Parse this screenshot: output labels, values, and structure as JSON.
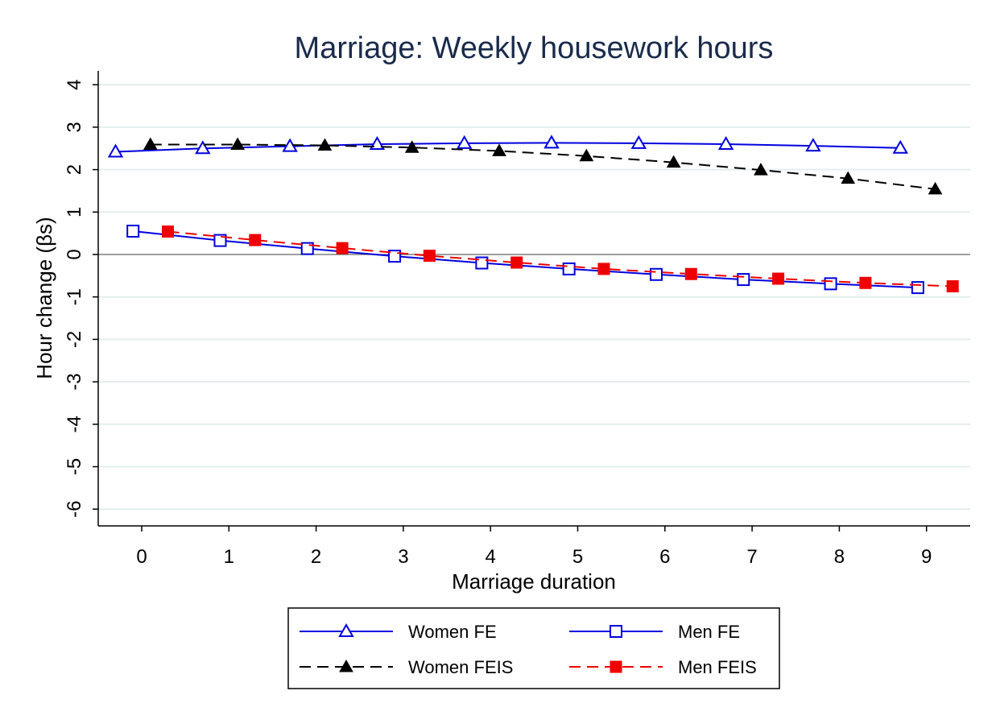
{
  "chart_data": {
    "type": "line",
    "title": "Marriage: Weekly housework hours",
    "xlabel": "Marriage duration",
    "ylabel": "Hour change (βs)",
    "xlim": [
      -0.5,
      9.5
    ],
    "ylim": [
      -6.3,
      4.2
    ],
    "x_ticks": [
      0,
      1,
      2,
      3,
      4,
      5,
      6,
      7,
      8,
      9
    ],
    "y_ticks": [
      4,
      3,
      2,
      1,
      0,
      -1,
      -2,
      -3,
      -4,
      -5,
      -6
    ],
    "grid": true,
    "zero_line": true,
    "legend_position": "bottom",
    "series": [
      {
        "name": "Women FE",
        "color": "#0000dd",
        "marker": "triangle-open",
        "line": "solid",
        "x": [
          -0.3,
          0.7,
          1.7,
          2.7,
          3.7,
          4.7,
          5.7,
          6.7,
          7.7,
          8.7
        ],
        "values": [
          2.42,
          2.5,
          2.55,
          2.6,
          2.62,
          2.63,
          2.62,
          2.6,
          2.56,
          2.51
        ]
      },
      {
        "name": "Women FEIS",
        "color": "#000000",
        "marker": "triangle-filled",
        "line": "dashed",
        "x": [
          0.1,
          1.1,
          2.1,
          3.1,
          4.1,
          5.1,
          6.1,
          7.1,
          8.1,
          9.1
        ],
        "values": [
          2.59,
          2.59,
          2.57,
          2.52,
          2.44,
          2.32,
          2.17,
          1.99,
          1.79,
          1.54
        ]
      },
      {
        "name": "Men FE",
        "color": "#0000dd",
        "marker": "square-open",
        "line": "solid",
        "x": [
          -0.1,
          0.9,
          1.9,
          2.9,
          3.9,
          4.9,
          5.9,
          6.9,
          7.9,
          8.9
        ],
        "values": [
          0.55,
          0.33,
          0.14,
          -0.04,
          -0.2,
          -0.34,
          -0.47,
          -0.59,
          -0.69,
          -0.78
        ]
      },
      {
        "name": "Men FEIS",
        "color": "#ee0000",
        "marker": "square-filled",
        "line": "dashed",
        "x": [
          0.3,
          1.3,
          2.3,
          3.3,
          4.3,
          5.3,
          6.3,
          7.3,
          8.3,
          9.3
        ],
        "values": [
          0.54,
          0.34,
          0.15,
          -0.03,
          -0.19,
          -0.34,
          -0.46,
          -0.57,
          -0.67,
          -0.75
        ]
      }
    ]
  }
}
